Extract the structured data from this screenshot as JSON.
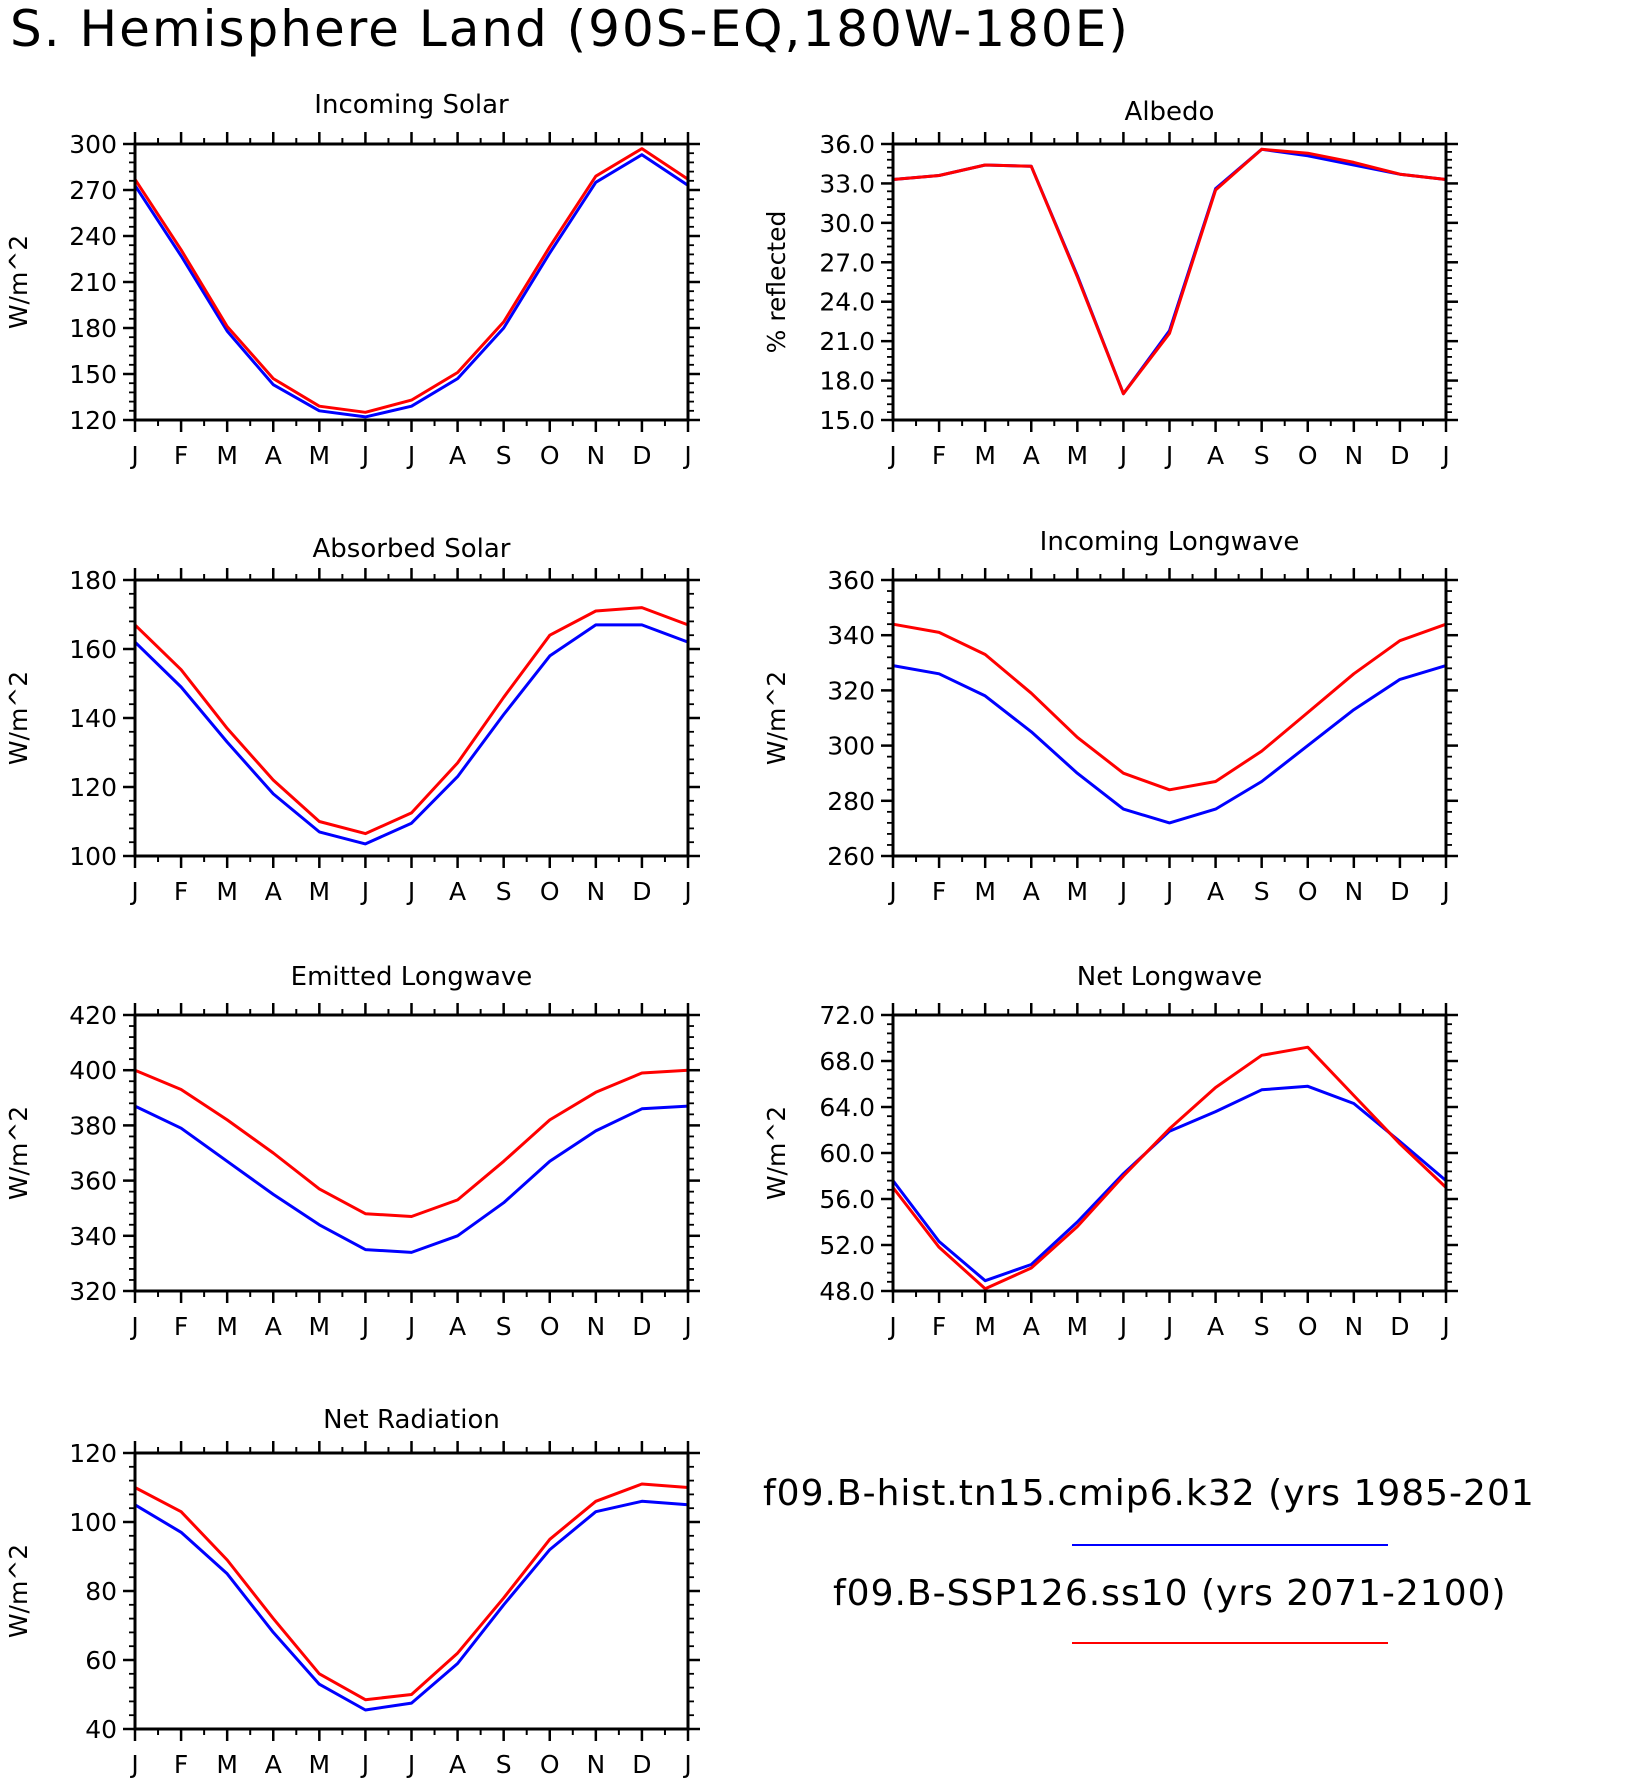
{
  "title": "S. Hemisphere Land (90S-EQ,180W-180E)",
  "legend": [
    {
      "label": "f09.B-hist.tn15.cmip6.k32 (yrs 1985-201",
      "color": "#0000ff"
    },
    {
      "label": "f09.B-SSP126.ss10 (yrs 2071-2100)",
      "color": "#ff0000"
    }
  ],
  "chart_data": [
    {
      "type": "line",
      "title": "Incoming Solar",
      "ylabel": "W/m^2",
      "categories": [
        "J",
        "F",
        "M",
        "A",
        "M",
        "J",
        "J",
        "A",
        "S",
        "O",
        "N",
        "D",
        "J"
      ],
      "ylim": [
        120,
        300
      ],
      "yticks": [
        "120",
        "150",
        "180",
        "210",
        "240",
        "270",
        "300"
      ],
      "series": [
        {
          "name": "f09.B-hist.tn15.cmip6.k32 (yrs 1985-201",
          "color": "#0000ff",
          "values": [
            273,
            227,
            178,
            143,
            126,
            122,
            129,
            147,
            180,
            229,
            275,
            293,
            273
          ]
        },
        {
          "name": "f09.B-SSP126.ss10 (yrs 2071-2100)",
          "color": "#ff0000",
          "values": [
            277,
            231,
            181,
            147,
            129,
            125,
            133,
            151,
            184,
            233,
            279,
            297,
            277
          ]
        }
      ]
    },
    {
      "type": "line",
      "title": "Albedo",
      "ylabel": "% reflected",
      "categories": [
        "J",
        "F",
        "M",
        "A",
        "M",
        "J",
        "J",
        "A",
        "S",
        "O",
        "N",
        "D",
        "J"
      ],
      "ylim": [
        15.0,
        36.0
      ],
      "yticks": [
        "15.0",
        "18.0",
        "21.0",
        "24.0",
        "27.0",
        "30.0",
        "33.0",
        "36.0"
      ],
      "series": [
        {
          "name": "f09.B-hist.tn15.cmip6.k32 (yrs 1985-201",
          "color": "#0000ff",
          "values": [
            33.3,
            33.6,
            34.4,
            34.3,
            26.0,
            17.0,
            21.8,
            32.6,
            35.6,
            35.1,
            34.4,
            33.7,
            33.3
          ]
        },
        {
          "name": "f09.B-SSP126.ss10 (yrs 2071-2100)",
          "color": "#ff0000",
          "values": [
            33.3,
            33.6,
            34.4,
            34.3,
            25.9,
            17.0,
            21.6,
            32.5,
            35.6,
            35.3,
            34.6,
            33.7,
            33.3
          ]
        }
      ]
    },
    {
      "type": "line",
      "title": "Absorbed Solar",
      "ylabel": "W/m^2",
      "categories": [
        "J",
        "F",
        "M",
        "A",
        "M",
        "J",
        "J",
        "A",
        "S",
        "O",
        "N",
        "D",
        "J"
      ],
      "ylim": [
        100,
        180
      ],
      "yticks": [
        "100",
        "120",
        "140",
        "160",
        "180"
      ],
      "series": [
        {
          "name": "f09.B-hist.tn15.cmip6.k32 (yrs 1985-201",
          "color": "#0000ff",
          "values": [
            162,
            149,
            133,
            118,
            107,
            103.5,
            109.5,
            123,
            141,
            158,
            167,
            167,
            162
          ]
        },
        {
          "name": "f09.B-SSP126.ss10 (yrs 2071-2100)",
          "color": "#ff0000",
          "values": [
            167,
            154,
            137,
            122,
            110,
            106.5,
            112.5,
            127,
            146,
            164,
            171,
            172,
            167
          ]
        }
      ]
    },
    {
      "type": "line",
      "title": "Incoming Longwave",
      "ylabel": "W/m^2",
      "categories": [
        "J",
        "F",
        "M",
        "A",
        "M",
        "J",
        "J",
        "A",
        "S",
        "O",
        "N",
        "D",
        "J"
      ],
      "ylim": [
        260,
        360
      ],
      "yticks": [
        "260",
        "280",
        "300",
        "320",
        "340",
        "360"
      ],
      "series": [
        {
          "name": "f09.B-hist.tn15.cmip6.k32 (yrs 1985-201",
          "color": "#0000ff",
          "values": [
            329,
            326,
            318,
            305,
            290,
            277,
            272,
            277,
            287,
            300,
            313,
            324,
            329
          ]
        },
        {
          "name": "f09.B-SSP126.ss10 (yrs 2071-2100)",
          "color": "#ff0000",
          "values": [
            344,
            341,
            333,
            319,
            303,
            290,
            284,
            287,
            298,
            312,
            326,
            338,
            344
          ]
        }
      ]
    },
    {
      "type": "line",
      "title": "Emitted Longwave",
      "ylabel": "W/m^2",
      "categories": [
        "J",
        "F",
        "M",
        "A",
        "M",
        "J",
        "J",
        "A",
        "S",
        "O",
        "N",
        "D",
        "J"
      ],
      "ylim": [
        320,
        420
      ],
      "yticks": [
        "320",
        "340",
        "360",
        "380",
        "400",
        "420"
      ],
      "series": [
        {
          "name": "f09.B-hist.tn15.cmip6.k32 (yrs 1985-201",
          "color": "#0000ff",
          "values": [
            387,
            379,
            367,
            355,
            344,
            335,
            334,
            340,
            352,
            367,
            378,
            386,
            387
          ]
        },
        {
          "name": "f09.B-SSP126.ss10 (yrs 2071-2100)",
          "color": "#ff0000",
          "values": [
            400,
            393,
            382,
            370,
            357,
            348,
            347,
            353,
            367,
            382,
            392,
            399,
            400
          ]
        }
      ]
    },
    {
      "type": "line",
      "title": "Net Longwave",
      "ylabel": "W/m^2",
      "categories": [
        "J",
        "F",
        "M",
        "A",
        "M",
        "J",
        "J",
        "A",
        "S",
        "O",
        "N",
        "D",
        "J"
      ],
      "ylim": [
        48.0,
        72.0
      ],
      "yticks": [
        "48.0",
        "52.0",
        "56.0",
        "60.0",
        "64.0",
        "68.0",
        "72.0"
      ],
      "series": [
        {
          "name": "f09.B-hist.tn15.cmip6.k32 (yrs 1985-201",
          "color": "#0000ff",
          "values": [
            57.6,
            52.3,
            48.9,
            50.3,
            54.0,
            58.2,
            61.9,
            63.6,
            65.5,
            65.8,
            64.3,
            61.0,
            57.6
          ]
        },
        {
          "name": "f09.B-SSP126.ss10 (yrs 2071-2100)",
          "color": "#ff0000",
          "values": [
            57.0,
            51.8,
            48.2,
            50.0,
            53.6,
            58.0,
            62.1,
            65.7,
            68.5,
            69.2,
            65.0,
            60.8,
            57.0
          ]
        }
      ]
    },
    {
      "type": "line",
      "title": "Net Radiation",
      "ylabel": "W/m^2",
      "categories": [
        "J",
        "F",
        "M",
        "A",
        "M",
        "J",
        "J",
        "A",
        "S",
        "O",
        "N",
        "D",
        "J"
      ],
      "ylim": [
        40,
        120
      ],
      "yticks": [
        "40",
        "60",
        "80",
        "100",
        "120"
      ],
      "series": [
        {
          "name": "f09.B-hist.tn15.cmip6.k32 (yrs 1985-201",
          "color": "#0000ff",
          "values": [
            105,
            97,
            85,
            68,
            53,
            45.5,
            47.5,
            59,
            76,
            92,
            103,
            106,
            105
          ]
        },
        {
          "name": "f09.B-SSP126.ss10 (yrs 2071-2100)",
          "color": "#ff0000",
          "values": [
            110,
            103,
            89,
            72,
            56,
            48.5,
            50,
            62,
            78,
            95,
            106,
            111,
            110
          ]
        }
      ]
    }
  ]
}
